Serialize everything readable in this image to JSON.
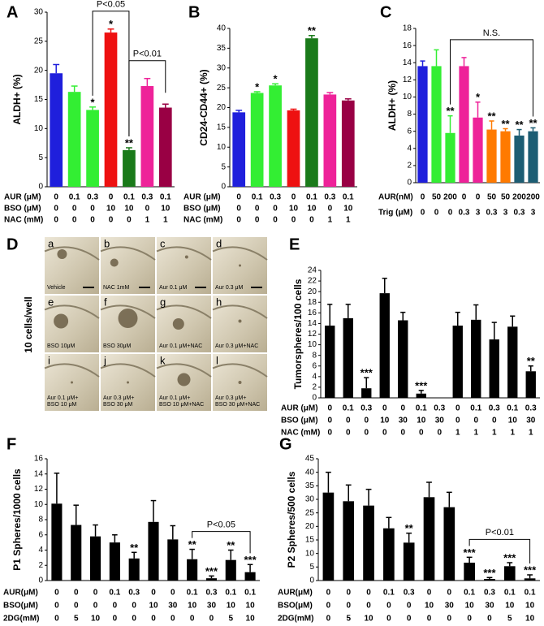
{
  "chart_data": [
    {
      "type": "bar",
      "letter": "A",
      "ylabel": "ALDH+ (%)",
      "values": [
        19.5,
        16.3,
        13.2,
        26.5,
        6.3,
        17.3,
        13.6
      ],
      "errors": [
        1.5,
        1,
        0.5,
        0.6,
        0.4,
        1.3,
        0.6
      ],
      "colors": [
        "#1f1fdc",
        "#33ee33",
        "#33ee33",
        "#ee1111",
        "#1a7a1a",
        "#ee2299",
        "#990044"
      ],
      "stars": [
        null,
        null,
        "*",
        "*",
        "**",
        null,
        null
      ],
      "brackets": [
        {
          "label": "P<0.05",
          "from": 2,
          "to": 4
        },
        {
          "label": "P<0.01",
          "from": 4,
          "to": 6
        }
      ],
      "condition_rows": [
        {
          "name": "AUR (μM)",
          "values": [
            0,
            0.1,
            0.3,
            0,
            0.1,
            0.3,
            0.1
          ]
        },
        {
          "name": "BSO (μM)",
          "values": [
            0,
            0,
            0,
            10,
            10,
            0,
            10
          ]
        },
        {
          "name": "NAC (mM)",
          "values": [
            0,
            0,
            0,
            0,
            0,
            1,
            1
          ]
        }
      ],
      "ylim": [
        0,
        30
      ],
      "yticks": [
        0,
        5,
        10,
        15,
        20,
        25,
        30
      ]
    },
    {
      "type": "bar",
      "letter": "B",
      "ylabel": "CD24-CD44+ (%)",
      "values": [
        18.8,
        23.7,
        25.6,
        19.3,
        37.5,
        23.3,
        21.8
      ],
      "errors": [
        0.5,
        0.3,
        0.4,
        0.3,
        0.7,
        0.5,
        0.4
      ],
      "colors": [
        "#1f1fdc",
        "#33ee33",
        "#33ee33",
        "#ee1111",
        "#1a7a1a",
        "#ee2299",
        "#990044"
      ],
      "stars": [
        null,
        "*",
        "*",
        null,
        "**",
        null,
        null
      ],
      "condition_rows": [
        {
          "name": "AUR (μM)",
          "values": [
            0,
            0.1,
            0.3,
            0,
            0.1,
            0.3,
            0.1
          ]
        },
        {
          "name": "BSO (μM)",
          "values": [
            0,
            0,
            0,
            10,
            10,
            0,
            10
          ]
        },
        {
          "name": "NAC (mM)",
          "values": [
            0,
            0,
            0,
            0,
            0,
            1,
            1
          ]
        }
      ],
      "ylim": [
        0,
        40
      ],
      "yticks": [
        0,
        5,
        10,
        15,
        20,
        25,
        30,
        35,
        40
      ]
    },
    {
      "type": "bar",
      "letter": "C",
      "ylabel": "ALDH+ (%)",
      "values": [
        13.6,
        13.6,
        5.8,
        13.6,
        7.6,
        6.2,
        6,
        5.5,
        6
      ],
      "errors": [
        0.6,
        1.9,
        2,
        1,
        1.8,
        1,
        0.3,
        0.7,
        0.4
      ],
      "colors": [
        "#1f1fdc",
        "#33ee33",
        "#33ee33",
        "#ee2299",
        "#ee2299",
        "#ff7a00",
        "#ff7a00",
        "#1d5d73",
        "#1d5d73"
      ],
      "stars": [
        null,
        null,
        "**",
        null,
        "*",
        "**",
        "**",
        "**",
        "**"
      ],
      "brackets": [
        {
          "label": "N.S.",
          "from": 2,
          "to": 8
        }
      ],
      "condition_rows": [
        {
          "name": "AUR(nM)",
          "values": [
            0,
            50,
            200,
            0,
            0,
            50,
            50,
            200,
            200
          ]
        },
        {
          "name": "Trig (μM)",
          "values": [
            0,
            0,
            0,
            0.3,
            3,
            0.3,
            3,
            0.3,
            3
          ]
        }
      ],
      "ylim": [
        0,
        18
      ],
      "yticks": [
        0,
        2,
        4,
        6,
        8,
        10,
        12,
        14,
        16,
        18
      ]
    },
    {
      "type": "bar",
      "letter": "E",
      "ylabel": "Tumorspheres/100 cells",
      "values": [
        13.6,
        15,
        1.8,
        19.7,
        14.6,
        0.8,
        0,
        13.6,
        14.7,
        11,
        13.4,
        5
      ],
      "errors": [
        4,
        2.6,
        2,
        2.8,
        1.5,
        0.6,
        null,
        2.5,
        2.8,
        3.2,
        2,
        1
      ],
      "color": "#000000",
      "stars": [
        null,
        null,
        "***",
        null,
        null,
        "***",
        null,
        null,
        null,
        null,
        null,
        "**"
      ],
      "condition_rows": [
        {
          "name": "AUR (μM)",
          "values": [
            0,
            0.1,
            0.3,
            0,
            0,
            0.1,
            0.3,
            0,
            0.1,
            0.3,
            0.1,
            0.3
          ]
        },
        {
          "name": "BSO (μM)",
          "values": [
            0,
            0,
            0,
            10,
            30,
            10,
            30,
            0,
            0,
            0,
            10,
            30
          ]
        },
        {
          "name": "NAC (mM)",
          "values": [
            0,
            0,
            0,
            0,
            0,
            0,
            0,
            1,
            1,
            1,
            1,
            1
          ]
        }
      ],
      "ylim": [
        0,
        24
      ],
      "yticks": [
        0,
        2,
        4,
        6,
        8,
        10,
        12,
        14,
        16,
        18,
        20,
        22,
        24
      ]
    },
    {
      "type": "bar",
      "letter": "F",
      "ylabel": "P1 Spheres/1000 cells",
      "values": [
        10.1,
        7.3,
        5.8,
        5,
        2.9,
        7.7,
        5.4,
        2.8,
        0.3,
        2.7,
        1.1
      ],
      "errors": [
        4,
        2.6,
        1.5,
        1,
        0.8,
        2.8,
        1.8,
        1.3,
        0.3,
        1.3,
        1
      ],
      "color": "#000000",
      "stars": [
        null,
        null,
        null,
        null,
        "**",
        null,
        null,
        "**",
        "***",
        "**",
        "***"
      ],
      "brackets": [
        {
          "label": "P<0.05",
          "from": 7,
          "to": 10
        }
      ],
      "condition_rows": [
        {
          "name": "AUR(μM)",
          "values": [
            0,
            0,
            0,
            0.1,
            0.3,
            0,
            0,
            0.1,
            0.3,
            0.1,
            0.1
          ]
        },
        {
          "name": "BSO(μM)",
          "values": [
            0,
            0,
            0,
            0,
            0,
            10,
            30,
            10,
            30,
            10,
            10
          ]
        },
        {
          "name": "2DG(mM)",
          "values": [
            0,
            5,
            10,
            0,
            0,
            0,
            0,
            0,
            0,
            5,
            10
          ]
        }
      ],
      "ylim": [
        0,
        16
      ],
      "yticks": [
        0,
        2,
        4,
        6,
        8,
        10,
        12,
        14,
        16
      ]
    },
    {
      "type": "bar",
      "letter": "G",
      "ylabel": "P2 Spheres/500 cells",
      "values": [
        32.5,
        29.3,
        27.7,
        19.3,
        14,
        30.8,
        27.1,
        6.6,
        0.6,
        5.3,
        0.8
      ],
      "errors": [
        7.5,
        6,
        6,
        4,
        3.5,
        5.5,
        5.5,
        2,
        0.5,
        1.3,
        1.3
      ],
      "color": "#000000",
      "stars": [
        null,
        null,
        null,
        null,
        "**",
        null,
        null,
        "***",
        "***",
        "***",
        "***"
      ],
      "brackets": [
        {
          "label": "P<0.01",
          "from": 7,
          "to": 10
        }
      ],
      "condition_rows": [
        {
          "name": "AUR(μM)",
          "values": [
            0,
            0,
            0,
            0.1,
            0.3,
            0,
            0,
            0.1,
            0.3,
            0.1,
            0.1
          ]
        },
        {
          "name": "BSO(μM)",
          "values": [
            0,
            0,
            0,
            0,
            0,
            10,
            30,
            10,
            30,
            10,
            10
          ]
        },
        {
          "name": "2DG(mM)",
          "values": [
            0,
            5,
            10,
            0,
            0,
            0,
            0,
            0,
            0,
            5,
            10
          ]
        }
      ],
      "ylim": [
        0,
        45
      ],
      "yticks": [
        0,
        5,
        10,
        15,
        20,
        25,
        30,
        35,
        40,
        45
      ]
    }
  ],
  "image_panel": {
    "letter": "D",
    "side_label": "10 cells/well",
    "tiles": [
      {
        "letter": "a",
        "caption": [
          "Vehicle"
        ]
      },
      {
        "letter": "b",
        "caption": [
          "NAC 1mM"
        ]
      },
      {
        "letter": "c",
        "caption": [
          "Aur 0.1 μM"
        ]
      },
      {
        "letter": "d",
        "caption": [
          "Aur 0.3 μM"
        ]
      },
      {
        "letter": "e",
        "caption": [
          "BSO 10μM"
        ]
      },
      {
        "letter": "f",
        "caption": [
          "BSO 30μM"
        ]
      },
      {
        "letter": "g",
        "caption": [
          "Aur 0.1 μM+NAC"
        ]
      },
      {
        "letter": "h",
        "caption": [
          "Aur 0.3 μM+NAC"
        ]
      },
      {
        "letter": "i",
        "caption": [
          "Aur 0.1 μM+",
          "BSO 10 μM"
        ]
      },
      {
        "letter": "j",
        "caption": [
          "Aur 0.3 μM+",
          "BSO 30 μM"
        ]
      },
      {
        "letter": "k",
        "caption": [
          "Aur 0.1 μM+",
          "BSO 10 μM+NAC"
        ]
      },
      {
        "letter": "l",
        "caption": [
          "Aur 0.3 μM+",
          "BSO 30 μM+NAC"
        ]
      }
    ]
  }
}
